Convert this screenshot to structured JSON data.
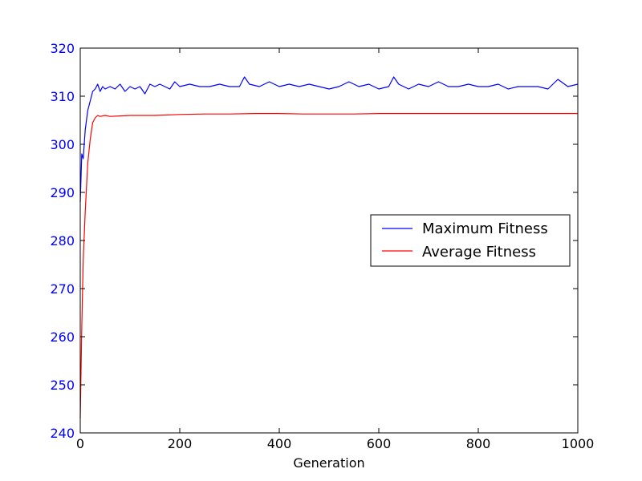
{
  "chart_data": {
    "type": "line",
    "title": "",
    "xlabel": "Generation",
    "ylabel": "",
    "xlim": [
      0,
      1000
    ],
    "ylim": [
      240,
      320
    ],
    "xticks": [
      0,
      200,
      400,
      600,
      800,
      1000
    ],
    "yticks": [
      240,
      250,
      260,
      270,
      280,
      290,
      300,
      310,
      320
    ],
    "xtick_labels": [
      "0",
      "200",
      "400",
      "600",
      "800",
      "1000"
    ],
    "ytick_labels": [
      "240",
      "250",
      "260",
      "270",
      "280",
      "290",
      "300",
      "310",
      "320"
    ],
    "ytick_color": "#0000ff",
    "grid": false,
    "legend": {
      "placement": "center-right"
    },
    "series": [
      {
        "name": "Maximum Fitness",
        "color": "#0000ff",
        "x": [
          0,
          3,
          6,
          10,
          15,
          20,
          25,
          30,
          35,
          40,
          45,
          50,
          60,
          70,
          80,
          90,
          100,
          110,
          120,
          130,
          140,
          150,
          160,
          170,
          180,
          190,
          200,
          220,
          240,
          260,
          280,
          300,
          320,
          330,
          340,
          360,
          380,
          400,
          420,
          440,
          460,
          480,
          500,
          520,
          540,
          560,
          580,
          600,
          620,
          630,
          640,
          660,
          680,
          700,
          720,
          740,
          760,
          780,
          800,
          820,
          840,
          860,
          880,
          900,
          920,
          940,
          960,
          980,
          1000
        ],
        "y": [
          288,
          298,
          297,
          303,
          307,
          309,
          311,
          311.5,
          312.5,
          311,
          312,
          311.5,
          312,
          311.5,
          312.5,
          311,
          312,
          311.5,
          312,
          310.5,
          312.5,
          312,
          312.5,
          312,
          311.5,
          313,
          312,
          312.5,
          312,
          312,
          312.5,
          312,
          312,
          314,
          312.5,
          312,
          313,
          312,
          312.5,
          312,
          312.5,
          312,
          311.5,
          312,
          313,
          312,
          312.5,
          311.5,
          312,
          314,
          312.5,
          311.5,
          312.5,
          312,
          313,
          312,
          312,
          312.5,
          312,
          312,
          312.5,
          311.5,
          312,
          312,
          312,
          311.5,
          313.5,
          312,
          312.5
        ]
      },
      {
        "name": "Average Fitness",
        "color": "#ff0000",
        "x": [
          0,
          3,
          6,
          10,
          15,
          20,
          25,
          30,
          35,
          40,
          50,
          60,
          80,
          100,
          150,
          200,
          250,
          300,
          350,
          400,
          450,
          500,
          550,
          600,
          650,
          700,
          750,
          800,
          850,
          900,
          950,
          1000
        ],
        "y": [
          243,
          262,
          276,
          286,
          296,
          301,
          304.5,
          305.5,
          306,
          305.8,
          306,
          305.8,
          305.9,
          306,
          306,
          306.2,
          306.3,
          306.3,
          306.4,
          306.4,
          306.3,
          306.3,
          306.3,
          306.4,
          306.4,
          306.4,
          306.4,
          306.4,
          306.4,
          306.4,
          306.4,
          306.4
        ]
      }
    ]
  }
}
